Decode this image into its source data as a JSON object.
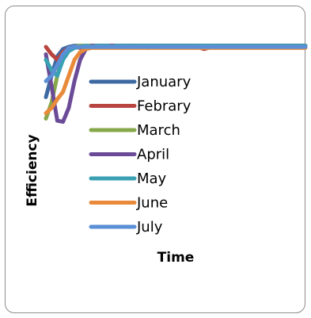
{
  "chart_data": {
    "type": "line",
    "title": "",
    "xlabel": "Time",
    "ylabel": "Efficiency",
    "xlim": [
      0,
      100
    ],
    "ylim": [
      0,
      100
    ],
    "grid": false,
    "legend": "left-center",
    "x": [
      0,
      1,
      2,
      3,
      4,
      5,
      6,
      7,
      8,
      9,
      10,
      12,
      14,
      16,
      20,
      25,
      30,
      35,
      40,
      45,
      50,
      55,
      60,
      65,
      70,
      75,
      80,
      85,
      90,
      95,
      100
    ],
    "series": [
      {
        "name": "January",
        "color": "#3e6aa3",
        "values": [
          50,
          70,
          88,
          95,
          97,
          98,
          98,
          98,
          98,
          98,
          98,
          98,
          98,
          98,
          98,
          98,
          98,
          98,
          98,
          98,
          98,
          98,
          98,
          98,
          98,
          98,
          98,
          98,
          98,
          98,
          98
        ]
      },
      {
        "name": "Febrary",
        "color": "#b84540",
        "values": [
          97,
          90,
          85,
          92,
          96,
          97,
          96,
          97,
          98,
          97,
          98,
          97,
          98,
          97,
          98,
          98,
          96,
          98,
          98,
          98,
          98,
          95,
          98,
          98,
          98,
          98,
          98,
          98,
          98,
          98,
          98
        ]
      },
      {
        "name": "March",
        "color": "#86a84a",
        "values": [
          30,
          45,
          70,
          88,
          95,
          97,
          98,
          98,
          98,
          98,
          98,
          98,
          98,
          98,
          98,
          98,
          98,
          98,
          98,
          98,
          98,
          98,
          98,
          98,
          98,
          98,
          98,
          98,
          98,
          98,
          98
        ]
      },
      {
        "name": "April",
        "color": "#6b4b97",
        "values": [
          90,
          60,
          28,
          27,
          40,
          65,
          85,
          95,
          98,
          98,
          98,
          98,
          98,
          98,
          98,
          98,
          98,
          98,
          98,
          98,
          98,
          98,
          98,
          98,
          98,
          98,
          98,
          98,
          98,
          98,
          98
        ]
      },
      {
        "name": "May",
        "color": "#3aa0b3",
        "values": [
          85,
          75,
          70,
          85,
          93,
          96,
          97,
          98,
          97,
          98,
          98,
          98,
          97,
          98,
          98,
          98,
          98,
          98,
          98,
          98,
          98,
          98,
          98,
          98,
          98,
          98,
          98,
          98,
          98,
          98,
          98
        ]
      },
      {
        "name": "June",
        "color": "#e88a3a",
        "values": [
          35,
          40,
          48,
          55,
          70,
          85,
          92,
          95,
          96,
          96,
          96,
          96,
          96,
          96,
          96,
          96,
          96,
          96,
          96,
          96,
          96,
          96,
          96,
          96,
          96,
          96,
          96,
          96,
          96,
          96,
          96
        ]
      },
      {
        "name": "July",
        "color": "#5b8fd6",
        "values": [
          65,
          70,
          80,
          90,
          96,
          97,
          97,
          97,
          97,
          97,
          97,
          97,
          97,
          97,
          97,
          97,
          97,
          97,
          97,
          97,
          97,
          97,
          97,
          97,
          97,
          97,
          97,
          97,
          97,
          97,
          97
        ]
      }
    ]
  }
}
